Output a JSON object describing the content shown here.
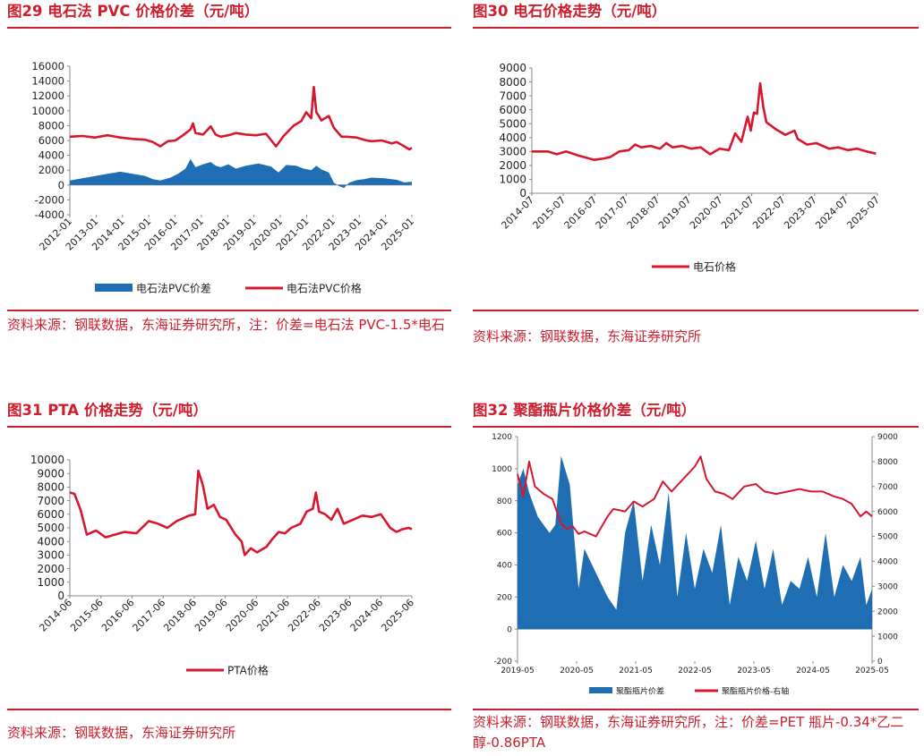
{
  "chart_data": [
    {
      "id": "fig29",
      "type": "area",
      "title": "图29  电石法 PVC 价格价差（元/吨）",
      "xlabel": "",
      "ylabel": "",
      "ylim": [
        -4000,
        16000
      ],
      "yticks": [
        "16000",
        "14000",
        "12000",
        "10000",
        "8000",
        "6000",
        "4000",
        "2000",
        "0",
        "-2000",
        "-4000"
      ],
      "x_tick_labels": [
        "2012-01",
        "2013-01",
        "2014-01",
        "2015-01",
        "2016-01",
        "2017-01",
        "2018-01",
        "2019-01",
        "2020-01",
        "2021-01",
        "2022-01",
        "2023-01",
        "2024-01",
        "2025-01"
      ],
      "x_range": [
        2012.0,
        2025.6
      ],
      "series": [
        {
          "name": "电石法PVC价差",
          "kind": "area",
          "color": "#1f6db3",
          "x": [
            2012.0,
            2012.5,
            2013.0,
            2013.5,
            2014.0,
            2014.5,
            2015.0,
            2015.3,
            2015.6,
            2016.0,
            2016.3,
            2016.6,
            2016.8,
            2017.0,
            2017.3,
            2017.6,
            2017.8,
            2018.0,
            2018.3,
            2018.6,
            2019.0,
            2019.5,
            2020.0,
            2020.3,
            2020.6,
            2021.0,
            2021.3,
            2021.6,
            2021.8,
            2022.0,
            2022.3,
            2022.5,
            2022.7,
            2022.9,
            2023.1,
            2023.4,
            2023.7,
            2024.0,
            2024.5,
            2025.0,
            2025.3,
            2025.6
          ],
          "y": [
            600,
            900,
            1200,
            1500,
            1800,
            1500,
            1200,
            800,
            600,
            1000,
            1500,
            2200,
            3500,
            2400,
            2800,
            3100,
            2600,
            2400,
            2800,
            2200,
            2600,
            2900,
            2500,
            1700,
            2700,
            2600,
            2200,
            2000,
            2600,
            2100,
            1700,
            300,
            -150,
            -400,
            300,
            650,
            800,
            1000,
            900,
            700,
            350,
            450
          ]
        },
        {
          "name": "电石法PVC价格",
          "kind": "line",
          "color": "#d7172f",
          "x": [
            2012.0,
            2012.5,
            2013.0,
            2013.5,
            2014.0,
            2014.5,
            2015.0,
            2015.3,
            2015.6,
            2015.9,
            2016.2,
            2016.5,
            2016.8,
            2016.9,
            2017.0,
            2017.3,
            2017.6,
            2017.8,
            2018.0,
            2018.3,
            2018.6,
            2019.0,
            2019.4,
            2019.8,
            2020.2,
            2020.5,
            2020.9,
            2021.2,
            2021.4,
            2021.6,
            2021.7,
            2021.8,
            2021.9,
            2022.0,
            2022.3,
            2022.5,
            2022.8,
            2023.0,
            2023.4,
            2023.8,
            2024.0,
            2024.4,
            2024.8,
            2025.0,
            2025.3,
            2025.5,
            2025.6
          ],
          "y": [
            6500,
            6600,
            6400,
            6700,
            6400,
            6200,
            6100,
            5800,
            5200,
            5900,
            6000,
            6700,
            7500,
            8300,
            7000,
            6800,
            7900,
            6800,
            6500,
            6700,
            7000,
            6800,
            6700,
            6900,
            5200,
            6600,
            8000,
            8600,
            9800,
            9000,
            13200,
            9800,
            9300,
            8700,
            9300,
            7700,
            6500,
            6500,
            6400,
            6000,
            5900,
            6000,
            5600,
            5800,
            5200,
            4800,
            5000
          ]
        }
      ]
    },
    {
      "id": "fig30",
      "type": "line",
      "title": "图30  电石价格走势（元/吨）",
      "xlabel": "",
      "ylabel": "",
      "ylim": [
        0,
        9000
      ],
      "yticks": [
        "9000",
        "8000",
        "7000",
        "6000",
        "5000",
        "4000",
        "3000",
        "2000",
        "1000",
        "0"
      ],
      "x_tick_labels": [
        "2014-07",
        "2015-07",
        "2016-07",
        "2017-07",
        "2018-07",
        "2019-07",
        "2020-07",
        "2021-07",
        "2022-07",
        "2023-07",
        "2024-07",
        "2025-07"
      ],
      "x_range": [
        2014.5,
        2025.55
      ],
      "series": [
        {
          "name": "电石价格",
          "kind": "line",
          "color": "#d7172f",
          "x": [
            2014.5,
            2015.0,
            2015.3,
            2015.6,
            2016.0,
            2016.5,
            2016.8,
            2017.0,
            2017.3,
            2017.6,
            2017.8,
            2018.0,
            2018.3,
            2018.6,
            2018.8,
            2019.0,
            2019.3,
            2019.6,
            2019.9,
            2020.2,
            2020.5,
            2020.8,
            2021.0,
            2021.2,
            2021.4,
            2021.5,
            2021.6,
            2021.7,
            2021.8,
            2021.9,
            2022.0,
            2022.3,
            2022.6,
            2022.9,
            2023.0,
            2023.3,
            2023.6,
            2024.0,
            2024.3,
            2024.6,
            2024.9,
            2025.2,
            2025.5
          ],
          "y": [
            3000,
            3000,
            2800,
            3000,
            2700,
            2400,
            2500,
            2600,
            3000,
            3100,
            3500,
            3300,
            3400,
            3200,
            3600,
            3300,
            3400,
            3200,
            3300,
            2800,
            3200,
            3100,
            4300,
            3700,
            5500,
            4500,
            5800,
            5700,
            7900,
            6200,
            5100,
            4600,
            4200,
            4500,
            3900,
            3500,
            3600,
            3200,
            3300,
            3100,
            3200,
            3000,
            2850
          ]
        }
      ]
    },
    {
      "id": "fig31",
      "type": "line",
      "title": "图31  PTA 价格走势（元/吨）",
      "xlabel": "",
      "ylabel": "",
      "ylim": [
        0,
        10000
      ],
      "yticks": [
        "10000",
        "9000",
        "8000",
        "7000",
        "6000",
        "5000",
        "4000",
        "3000",
        "2000",
        "1000",
        "0"
      ],
      "x_tick_labels": [
        "2014-06",
        "2015-06",
        "2016-06",
        "2017-06",
        "2018-06",
        "2019-06",
        "2020-06",
        "2021-06",
        "2022-06",
        "2023-06",
        "2024-06",
        "2025-06"
      ],
      "x_range": [
        2014.45,
        2025.5
      ],
      "series": [
        {
          "name": "PTA价格",
          "kind": "line",
          "color": "#d7172f",
          "x": [
            2014.45,
            2014.6,
            2014.8,
            2015.0,
            2015.3,
            2015.6,
            2015.9,
            2016.2,
            2016.6,
            2017.0,
            2017.3,
            2017.6,
            2017.9,
            2018.1,
            2018.3,
            2018.5,
            2018.6,
            2018.75,
            2018.9,
            2019.1,
            2019.3,
            2019.5,
            2019.8,
            2020.0,
            2020.1,
            2020.3,
            2020.5,
            2020.8,
            2021.0,
            2021.2,
            2021.4,
            2021.6,
            2021.9,
            2022.1,
            2022.3,
            2022.4,
            2022.5,
            2022.7,
            2022.9,
            2023.1,
            2023.3,
            2023.6,
            2023.9,
            2024.2,
            2024.5,
            2024.8,
            2025.0,
            2025.2,
            2025.4,
            2025.5
          ],
          "y": [
            7600,
            7500,
            6300,
            4500,
            4800,
            4300,
            4500,
            4700,
            4600,
            5500,
            5300,
            5000,
            5500,
            5700,
            5900,
            6000,
            9200,
            8100,
            6400,
            6700,
            5800,
            5600,
            4500,
            4000,
            3000,
            3500,
            3200,
            3600,
            4200,
            4700,
            4600,
            5000,
            5300,
            6200,
            6400,
            7600,
            6200,
            6000,
            5600,
            6400,
            5300,
            5600,
            5900,
            5800,
            6000,
            5000,
            4700,
            4900,
            5000,
            4900
          ]
        }
      ]
    },
    {
      "id": "fig32",
      "type": "area",
      "title": "图32  聚酯瓶片价格价差（元/吨）",
      "xlabel": "",
      "ylabel": "",
      "ylim": [
        -200,
        1200
      ],
      "ylim_right": [
        0,
        9000
      ],
      "yticks": [
        "1200",
        "1000",
        "800",
        "600",
        "400",
        "200",
        "0",
        "-200"
      ],
      "yticks_right": [
        "9000",
        "8000",
        "7000",
        "6000",
        "5000",
        "4000",
        "3000",
        "2000",
        "1000",
        "0"
      ],
      "x_tick_labels": [
        "2019-05",
        "2020-05",
        "2021-05",
        "2022-05",
        "2023-05",
        "2024-05",
        "2025-05"
      ],
      "x_range": [
        2019.35,
        2025.45
      ],
      "series": [
        {
          "name": "聚酯瓶片价差",
          "kind": "area",
          "axis": "left",
          "color": "#1f6db3",
          "x": [
            2019.35,
            2019.45,
            2019.55,
            2019.7,
            2019.9,
            2020.0,
            2020.1,
            2020.25,
            2020.4,
            2020.5,
            2020.7,
            2020.9,
            2021.05,
            2021.2,
            2021.35,
            2021.5,
            2021.65,
            2021.8,
            2021.95,
            2022.1,
            2022.25,
            2022.4,
            2022.55,
            2022.7,
            2022.85,
            2023.0,
            2023.15,
            2023.3,
            2023.45,
            2023.6,
            2023.75,
            2023.9,
            2024.05,
            2024.2,
            2024.35,
            2024.5,
            2024.65,
            2024.8,
            2024.95,
            2025.1,
            2025.25,
            2025.35,
            2025.45
          ],
          "y": [
            900,
            1000,
            850,
            700,
            600,
            650,
            1080,
            900,
            250,
            500,
            350,
            200,
            120,
            600,
            800,
            300,
            650,
            400,
            850,
            200,
            600,
            250,
            500,
            350,
            650,
            150,
            450,
            300,
            550,
            250,
            500,
            150,
            300,
            250,
            450,
            200,
            600,
            200,
            400,
            300,
            450,
            150,
            250
          ]
        },
        {
          "name": "聚酯瓶片价格-右轴",
          "kind": "line",
          "axis": "right",
          "color": "#d7172f",
          "x": [
            2019.35,
            2019.45,
            2019.55,
            2019.65,
            2019.8,
            2019.95,
            2020.1,
            2020.2,
            2020.3,
            2020.4,
            2020.5,
            2020.7,
            2020.9,
            2021.0,
            2021.2,
            2021.35,
            2021.5,
            2021.7,
            2021.85,
            2022.0,
            2022.2,
            2022.4,
            2022.5,
            2022.6,
            2022.75,
            2022.9,
            2023.05,
            2023.25,
            2023.45,
            2023.6,
            2023.8,
            2024.0,
            2024.2,
            2024.4,
            2024.6,
            2024.8,
            2024.95,
            2025.1,
            2025.25,
            2025.35,
            2025.45
          ],
          "y": [
            7500,
            6600,
            8000,
            7000,
            6700,
            6500,
            5500,
            5300,
            5400,
            5100,
            5200,
            5000,
            5800,
            6100,
            6000,
            6400,
            6200,
            6500,
            7200,
            6800,
            7300,
            7800,
            8200,
            7300,
            6800,
            6700,
            6500,
            7000,
            7100,
            6800,
            6700,
            6800,
            6900,
            6800,
            6800,
            6600,
            6500,
            6300,
            5800,
            6000,
            5800
          ]
        }
      ]
    }
  ],
  "captions": {
    "fig29_source": "资料来源：钢联数据，东海证券研究所，注：价差=电石法 PVC-1.5*电石",
    "fig30_source": "资料来源：钢联数据，东海证券研究所",
    "fig31_source": "资料来源：钢联数据，东海证券研究所",
    "fig32_source": "资料来源：钢联数据，东海证券研究所，注：价差=PET 瓶片-0.34*乙二醇-0.86PTA"
  },
  "colors": {
    "accent": "#cc1e2d",
    "series_red": "#d7172f",
    "series_blue": "#1f6db3"
  }
}
